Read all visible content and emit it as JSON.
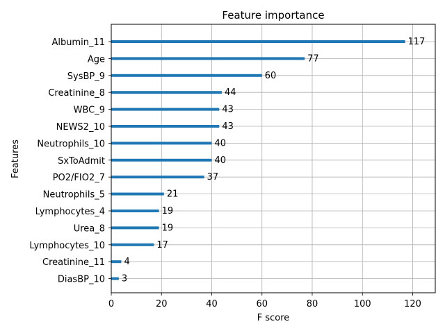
{
  "chart_data": {
    "type": "bar",
    "orientation": "horizontal",
    "title": "Feature importance",
    "xlabel": "F score",
    "ylabel": "Features",
    "xlim": [
      0,
      129
    ],
    "xticks": [
      0,
      20,
      40,
      60,
      80,
      100,
      120
    ],
    "grid": true,
    "bar_color": "#1f77b4",
    "categories": [
      "Albumin_11",
      "Age",
      "SysBP_9",
      "Creatinine_8",
      "WBC_9",
      "NEWS2_10",
      "Neutrophils_10",
      "SxToAdmit",
      "PO2/FIO2_7",
      "Neutrophils_5",
      "Lymphocytes_4",
      "Urea_8",
      "Lymphocytes_10",
      "Creatinine_11",
      "DiasBP_10"
    ],
    "values": [
      117,
      77,
      60,
      44,
      43,
      43,
      40,
      40,
      37,
      21,
      19,
      19,
      17,
      4,
      3
    ]
  }
}
